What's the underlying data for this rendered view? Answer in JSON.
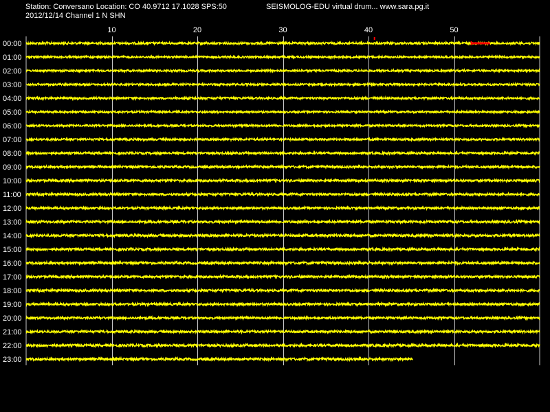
{
  "header": {
    "station_info": "Station: Conversano Location: CO 40.9712 17.1028 SPS:50",
    "app_title": "SEISMOLOG-EDU virtual drum... www.sara.pg.it",
    "date_channel": "2012/12/14  Channel 1 N SHN"
  },
  "colors": {
    "background": "#000000",
    "trace": "#ffff00",
    "event": "#ff0000",
    "grid": "#c8c8c8",
    "text": "#ffffff"
  },
  "chart_data": {
    "type": "line",
    "title": "",
    "xlabel": "",
    "ylabel": "",
    "xlim": [
      0,
      60
    ],
    "x_ticks": [
      10,
      20,
      30,
      40,
      50
    ],
    "grid": true,
    "rows": [
      {
        "label": "00:00",
        "start_min": 0,
        "end_min": 60,
        "amplitude": 1.6
      },
      {
        "label": "01:00",
        "start_min": 0,
        "end_min": 60,
        "amplitude": 1.4
      },
      {
        "label": "02:00",
        "start_min": 0,
        "end_min": 60,
        "amplitude": 1.4
      },
      {
        "label": "03:00",
        "start_min": 0,
        "end_min": 60,
        "amplitude": 1.4
      },
      {
        "label": "04:00",
        "start_min": 0,
        "end_min": 60,
        "amplitude": 1.5
      },
      {
        "label": "05:00",
        "start_min": 0,
        "end_min": 60,
        "amplitude": 1.4
      },
      {
        "label": "06:00",
        "start_min": 0,
        "end_min": 60,
        "amplitude": 1.4
      },
      {
        "label": "07:00",
        "start_min": 0,
        "end_min": 60,
        "amplitude": 1.5
      },
      {
        "label": "08:00",
        "start_min": 0,
        "end_min": 60,
        "amplitude": 1.6
      },
      {
        "label": "09:00",
        "start_min": 0,
        "end_min": 60,
        "amplitude": 1.6
      },
      {
        "label": "10:00",
        "start_min": 0,
        "end_min": 60,
        "amplitude": 1.7
      },
      {
        "label": "11:00",
        "start_min": 0,
        "end_min": 60,
        "amplitude": 1.7
      },
      {
        "label": "12:00",
        "start_min": 0,
        "end_min": 60,
        "amplitude": 1.6
      },
      {
        "label": "13:00",
        "start_min": 0,
        "end_min": 60,
        "amplitude": 1.7
      },
      {
        "label": "14:00",
        "start_min": 0,
        "end_min": 60,
        "amplitude": 1.8
      },
      {
        "label": "15:00",
        "start_min": 0,
        "end_min": 60,
        "amplitude": 1.7
      },
      {
        "label": "16:00",
        "start_min": 0,
        "end_min": 60,
        "amplitude": 1.8
      },
      {
        "label": "17:00",
        "start_min": 0,
        "end_min": 60,
        "amplitude": 1.7
      },
      {
        "label": "18:00",
        "start_min": 0,
        "end_min": 60,
        "amplitude": 1.7
      },
      {
        "label": "19:00",
        "start_min": 0,
        "end_min": 60,
        "amplitude": 1.7
      },
      {
        "label": "20:00",
        "start_min": 0,
        "end_min": 60,
        "amplitude": 1.6
      },
      {
        "label": "21:00",
        "start_min": 0,
        "end_min": 60,
        "amplitude": 1.7
      },
      {
        "label": "22:00",
        "start_min": 0,
        "end_min": 60,
        "amplitude": 1.8
      },
      {
        "label": "23:00",
        "start_min": 0,
        "end_min": 45.2,
        "amplitude": 1.8
      }
    ],
    "markers": [
      {
        "row": "00:00",
        "minute": 40.7,
        "color": "#ff0000",
        "kind": "tick"
      },
      {
        "row": "00:00",
        "start_min": 52,
        "end_min": 54.2,
        "color": "#ff0000",
        "kind": "event-segment"
      }
    ]
  }
}
